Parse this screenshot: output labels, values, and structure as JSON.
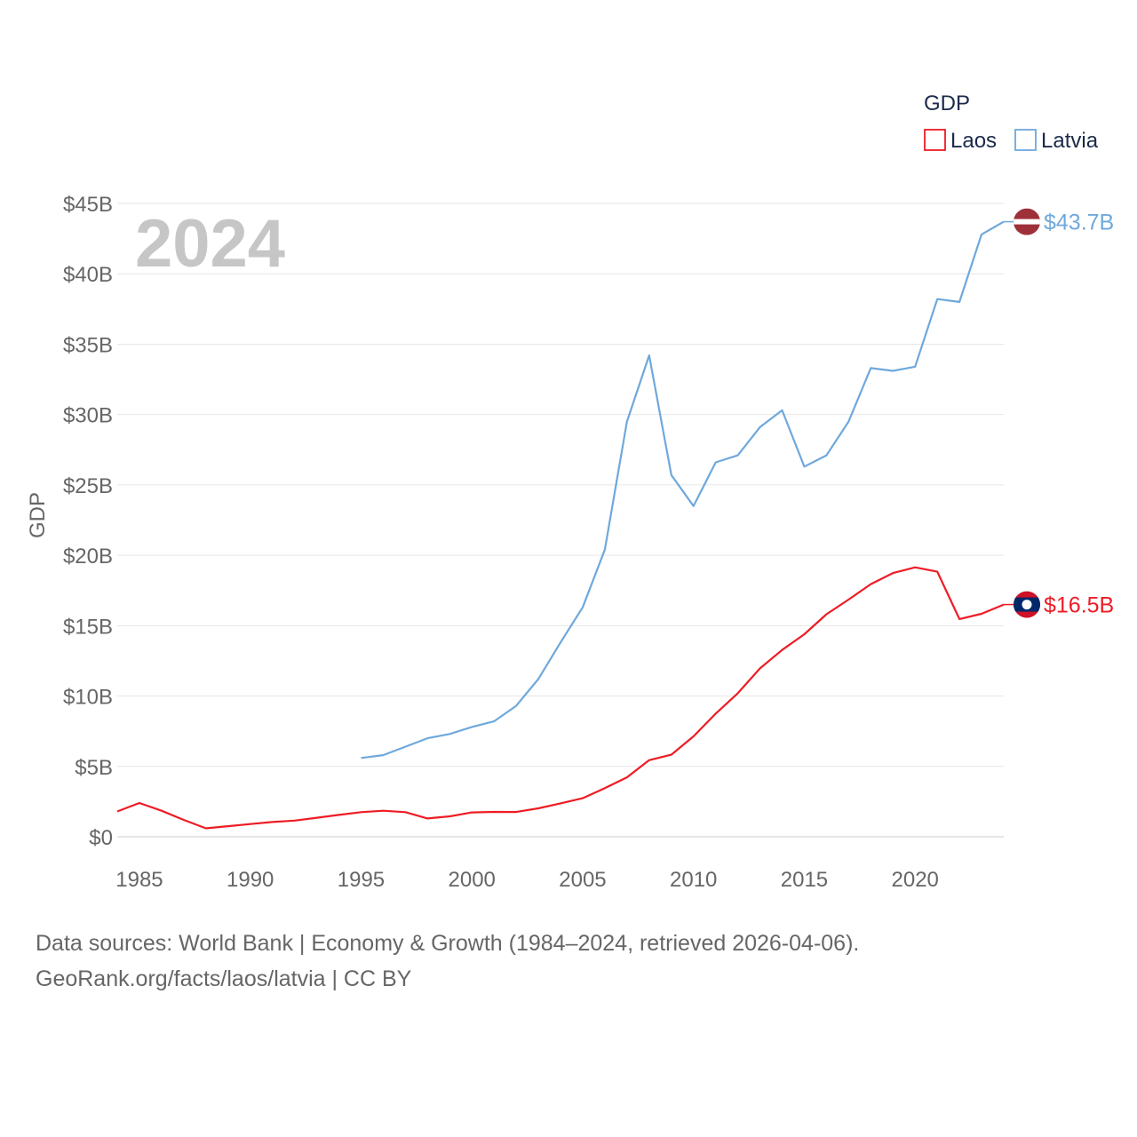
{
  "chart_data": {
    "type": "line",
    "title": "2024",
    "legend_title": "GDP",
    "ylabel": "GDP",
    "xlabel": "",
    "x": [
      1984,
      1985,
      1986,
      1987,
      1988,
      1989,
      1990,
      1991,
      1992,
      1993,
      1994,
      1995,
      1996,
      1997,
      1998,
      1999,
      2000,
      2001,
      2002,
      2003,
      2004,
      2005,
      2006,
      2007,
      2008,
      2009,
      2010,
      2011,
      2012,
      2013,
      2014,
      2015,
      2016,
      2017,
      2018,
      2019,
      2020,
      2021,
      2022,
      2023,
      2024
    ],
    "xlim": [
      1984,
      2024
    ],
    "ylim": [
      0,
      45
    ],
    "unit": "billion USD",
    "x_ticks": [
      1985,
      1990,
      1995,
      2000,
      2005,
      2010,
      2015,
      2020
    ],
    "y_ticks": [
      {
        "value": 0,
        "label": "$0"
      },
      {
        "value": 5,
        "label": "$5B"
      },
      {
        "value": 10,
        "label": "$10B"
      },
      {
        "value": 15,
        "label": "$15B"
      },
      {
        "value": 20,
        "label": "$20B"
      },
      {
        "value": 25,
        "label": "$25B"
      },
      {
        "value": 30,
        "label": "$30B"
      },
      {
        "value": 35,
        "label": "$35B"
      },
      {
        "value": 40,
        "label": "$40B"
      },
      {
        "value": 45,
        "label": "$45B"
      }
    ],
    "grid": true,
    "legend_position": "top-right",
    "series": [
      {
        "name": "Laos",
        "color": "#ee1c25",
        "end_label": "$16.5B",
        "flag_icon": "laos-flag-icon",
        "values": [
          1.8,
          2.4,
          1.85,
          1.2,
          0.6,
          0.75,
          0.9,
          1.05,
          1.15,
          1.35,
          1.55,
          1.75,
          1.85,
          1.75,
          1.3,
          1.45,
          1.73,
          1.77,
          1.76,
          2.02,
          2.37,
          2.74,
          3.45,
          4.22,
          5.44,
          5.83,
          7.13,
          8.75,
          10.2,
          11.96,
          13.27,
          14.39,
          15.81,
          16.85,
          17.95,
          18.74,
          19.14,
          18.83,
          15.47,
          15.84,
          16.5
        ]
      },
      {
        "name": "Latvia",
        "color": "#6fa8dc",
        "end_label": "$43.7B",
        "flag_icon": "latvia-flag-icon",
        "values": [
          null,
          null,
          null,
          null,
          null,
          null,
          null,
          null,
          null,
          null,
          null,
          5.6,
          5.8,
          6.4,
          7.0,
          7.3,
          7.8,
          8.2,
          9.3,
          11.2,
          13.8,
          16.3,
          20.4,
          29.5,
          34.2,
          25.7,
          23.5,
          26.6,
          27.1,
          29.1,
          30.3,
          26.3,
          27.1,
          29.5,
          33.3,
          33.1,
          33.4,
          38.2,
          38.0,
          42.8,
          43.7
        ]
      }
    ]
  },
  "footer": {
    "line1": "Data sources: World Bank | Economy & Growth (1984–2024, retrieved 2026-04-06).",
    "line2": "GeoRank.org/facts/laos/latvia | CC BY"
  }
}
